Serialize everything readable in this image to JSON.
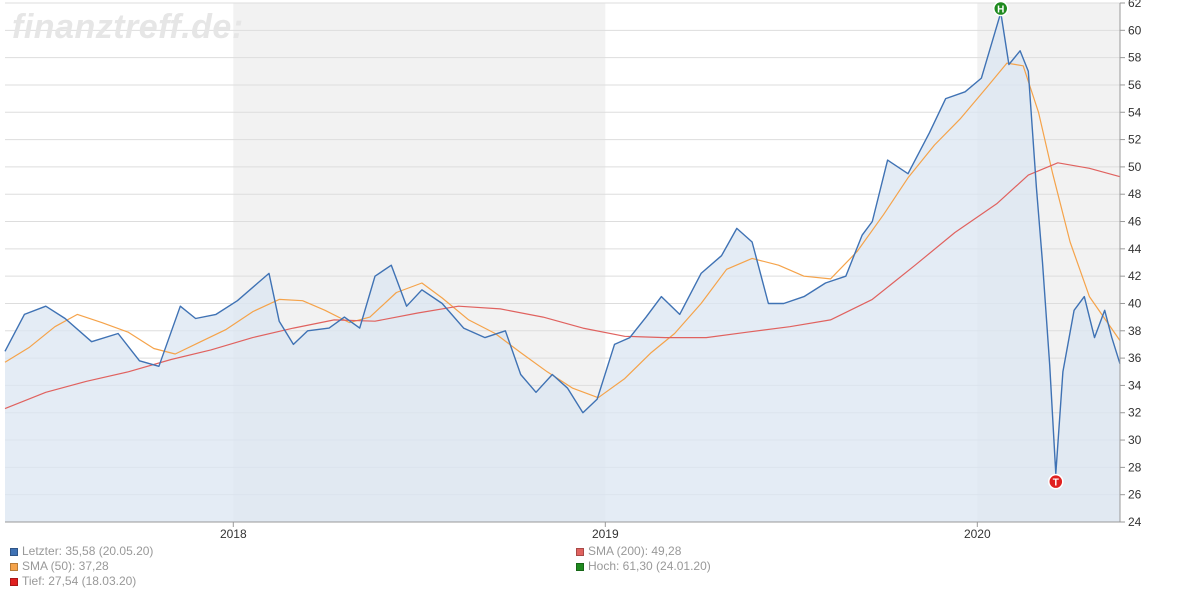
{
  "watermark": "finanztreff.de:",
  "colors": {
    "price": "#3f72b4",
    "price_fill": "#dbe5f2",
    "sma50": "#f5a34a",
    "sma200": "#e0625f",
    "high": "#1f8a1f",
    "low": "#e01f1f",
    "band": "#f2f2f2",
    "grid": "#dddddd"
  },
  "legend": {
    "letzter": "Letzter: 35,58 (20.05.20)",
    "sma200": "SMA (200): 49,28",
    "sma50": "SMA (50): 37,28",
    "hoch": "Hoch: 61,30 (24.01.20)",
    "tief": "Tief: 27,54 (18.03.20)"
  },
  "chart_data": {
    "type": "line",
    "x_tick_labels": [
      "2018",
      "2019",
      "2020"
    ],
    "y_tick_labels": [
      "24",
      "26",
      "28",
      "30",
      "32",
      "34",
      "36",
      "38",
      "40",
      "42",
      "44",
      "46",
      "48",
      "50",
      "52",
      "54",
      "56",
      "58",
      "60",
      "62"
    ],
    "xlim": [
      "2017-05-22",
      "2020-05-20"
    ],
    "ylim": [
      24,
      62
    ],
    "grid": true,
    "legend_position": "bottom",
    "markers": [
      {
        "label": "H",
        "date": "2020-01-24",
        "value": 61.3
      },
      {
        "label": "T",
        "date": "2020-03-18",
        "value": 27.54
      }
    ],
    "series": [
      {
        "name": "Letzter",
        "x": [
          "2017-05-22",
          "2017-06-10",
          "2017-07-01",
          "2017-07-20",
          "2017-08-15",
          "2017-09-10",
          "2017-10-01",
          "2017-10-20",
          "2017-11-10",
          "2017-11-25",
          "2017-12-15",
          "2018-01-05",
          "2018-01-25",
          "2018-02-05",
          "2018-02-15",
          "2018-03-01",
          "2018-03-15",
          "2018-04-05",
          "2018-04-20",
          "2018-05-05",
          "2018-05-20",
          "2018-06-05",
          "2018-06-20",
          "2018-07-05",
          "2018-07-25",
          "2018-08-15",
          "2018-09-05",
          "2018-09-25",
          "2018-10-10",
          "2018-10-25",
          "2018-11-10",
          "2018-11-25",
          "2018-12-10",
          "2018-12-24",
          "2019-01-10",
          "2019-01-25",
          "2019-02-10",
          "2019-02-25",
          "2019-03-15",
          "2019-04-05",
          "2019-04-25",
          "2019-05-10",
          "2019-05-25",
          "2019-06-10",
          "2019-06-25",
          "2019-07-15",
          "2019-08-05",
          "2019-08-25",
          "2019-09-10",
          "2019-09-20",
          "2019-10-05",
          "2019-10-25",
          "2019-11-15",
          "2019-12-01",
          "2019-12-20",
          "2020-01-05",
          "2020-01-24",
          "2020-02-01",
          "2020-02-12",
          "2020-02-20",
          "2020-02-28",
          "2020-03-05",
          "2020-03-12",
          "2020-03-18",
          "2020-03-25",
          "2020-04-05",
          "2020-04-15",
          "2020-04-25",
          "2020-05-05",
          "2020-05-12",
          "2020-05-20"
        ],
        "values": [
          36.5,
          39.2,
          39.8,
          38.9,
          37.2,
          37.8,
          35.8,
          35.4,
          39.8,
          38.9,
          39.2,
          40.2,
          41.5,
          42.2,
          38.7,
          37.0,
          38.0,
          38.2,
          39.0,
          38.2,
          42.0,
          42.8,
          39.8,
          41.0,
          40.0,
          38.2,
          37.5,
          38.0,
          34.8,
          33.5,
          34.8,
          33.8,
          32.0,
          33.0,
          37.0,
          37.5,
          39.0,
          40.5,
          39.2,
          42.2,
          43.5,
          45.5,
          44.5,
          40.0,
          40.0,
          40.5,
          41.5,
          42.0,
          45.0,
          46.0,
          50.5,
          49.5,
          52.5,
          55.0,
          55.5,
          56.5,
          61.3,
          57.5,
          58.5,
          57.0,
          48.5,
          43.0,
          35.5,
          27.54,
          35.0,
          39.5,
          40.5,
          37.5,
          39.5,
          37.5,
          35.58
        ]
      },
      {
        "name": "SMA (50)",
        "x": [
          "2017-05-22",
          "2017-06-15",
          "2017-07-10",
          "2017-08-01",
          "2017-08-25",
          "2017-09-20",
          "2017-10-15",
          "2017-11-05",
          "2017-11-30",
          "2017-12-25",
          "2018-01-20",
          "2018-02-15",
          "2018-03-10",
          "2018-04-01",
          "2018-04-25",
          "2018-05-15",
          "2018-06-10",
          "2018-07-05",
          "2018-07-25",
          "2018-08-20",
          "2018-09-15",
          "2018-10-10",
          "2018-11-05",
          "2018-11-30",
          "2018-12-25",
          "2019-01-20",
          "2019-02-15",
          "2019-03-10",
          "2019-04-05",
          "2019-04-30",
          "2019-05-25",
          "2019-06-20",
          "2019-07-15",
          "2019-08-10",
          "2019-09-05",
          "2019-10-01",
          "2019-10-25",
          "2019-11-20",
          "2019-12-15",
          "2020-01-10",
          "2020-01-30",
          "2020-02-15",
          "2020-03-01",
          "2020-03-15",
          "2020-04-01",
          "2020-04-20",
          "2020-05-20"
        ],
        "values": [
          35.7,
          36.8,
          38.3,
          39.2,
          38.6,
          37.9,
          36.7,
          36.3,
          37.2,
          38.1,
          39.4,
          40.3,
          40.2,
          39.5,
          38.6,
          39.0,
          40.8,
          41.5,
          40.4,
          38.8,
          37.8,
          36.4,
          35.0,
          33.8,
          33.1,
          34.5,
          36.4,
          37.8,
          40.0,
          42.5,
          43.3,
          42.8,
          42.0,
          41.8,
          43.8,
          46.5,
          49.2,
          51.6,
          53.5,
          55.8,
          57.6,
          57.4,
          54.0,
          49.5,
          44.5,
          40.5,
          37.28
        ]
      },
      {
        "name": "SMA (200)",
        "x": [
          "2017-05-22",
          "2017-07-01",
          "2017-08-10",
          "2017-09-20",
          "2017-11-01",
          "2017-12-10",
          "2018-01-20",
          "2018-03-01",
          "2018-04-10",
          "2018-05-20",
          "2018-07-01",
          "2018-08-10",
          "2018-09-20",
          "2018-11-01",
          "2018-12-10",
          "2019-01-20",
          "2019-03-01",
          "2019-04-10",
          "2019-05-20",
          "2019-07-01",
          "2019-08-10",
          "2019-09-20",
          "2019-11-01",
          "2019-12-10",
          "2020-01-20",
          "2020-02-20",
          "2020-03-20",
          "2020-04-20",
          "2020-05-20"
        ],
        "values": [
          32.3,
          33.5,
          34.3,
          35.0,
          35.9,
          36.6,
          37.5,
          38.2,
          38.8,
          38.7,
          39.3,
          39.8,
          39.6,
          39.0,
          38.2,
          37.6,
          37.5,
          37.5,
          37.9,
          38.3,
          38.8,
          40.3,
          42.8,
          45.2,
          47.3,
          49.4,
          50.3,
          49.9,
          49.28
        ]
      }
    ]
  }
}
